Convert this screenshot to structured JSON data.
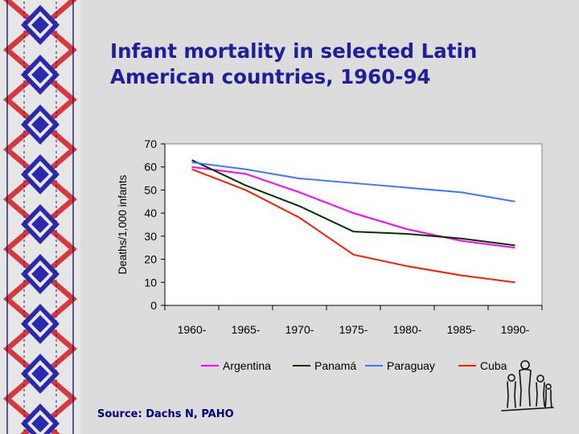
{
  "slide": {
    "title_line1": "Infant mortality in selected Latin",
    "title_line2": "American countries, 1960-94",
    "source": "Source: Dachs N, PAHO"
  },
  "colors": {
    "background": "#dcdcdc",
    "title": "#1f1f9c",
    "border_red": "#d8383c",
    "border_blue": "#2a2ab0"
  },
  "icons": {
    "border": "woven-pattern-border",
    "figures": "hand-drawn-family-figures"
  },
  "chart_data": {
    "type": "line",
    "title": "",
    "xlabel": "",
    "ylabel": "Deaths/1,000 infants",
    "ylim": [
      0,
      70
    ],
    "yticks": [
      0,
      10,
      20,
      30,
      40,
      50,
      60,
      70
    ],
    "categories": [
      "1960-",
      "1965-",
      "1970-",
      "1975-",
      "1980-",
      "1985-",
      "1990-"
    ],
    "legend_position": "bottom",
    "series": [
      {
        "name": "Argentina",
        "color": "#ff00ff",
        "values": [
          60,
          57,
          49,
          40,
          33,
          28,
          25
        ]
      },
      {
        "name": "Panamá",
        "color": "#003300",
        "values": [
          63,
          52,
          43,
          32,
          31,
          29,
          26
        ]
      },
      {
        "name": "Paraguay",
        "color": "#3c78ff",
        "values": [
          62,
          59,
          55,
          53,
          51,
          49,
          45
        ]
      },
      {
        "name": "Cuba",
        "color": "#ff1a00",
        "values": [
          59,
          50,
          38,
          22,
          17,
          13,
          10
        ]
      }
    ]
  }
}
